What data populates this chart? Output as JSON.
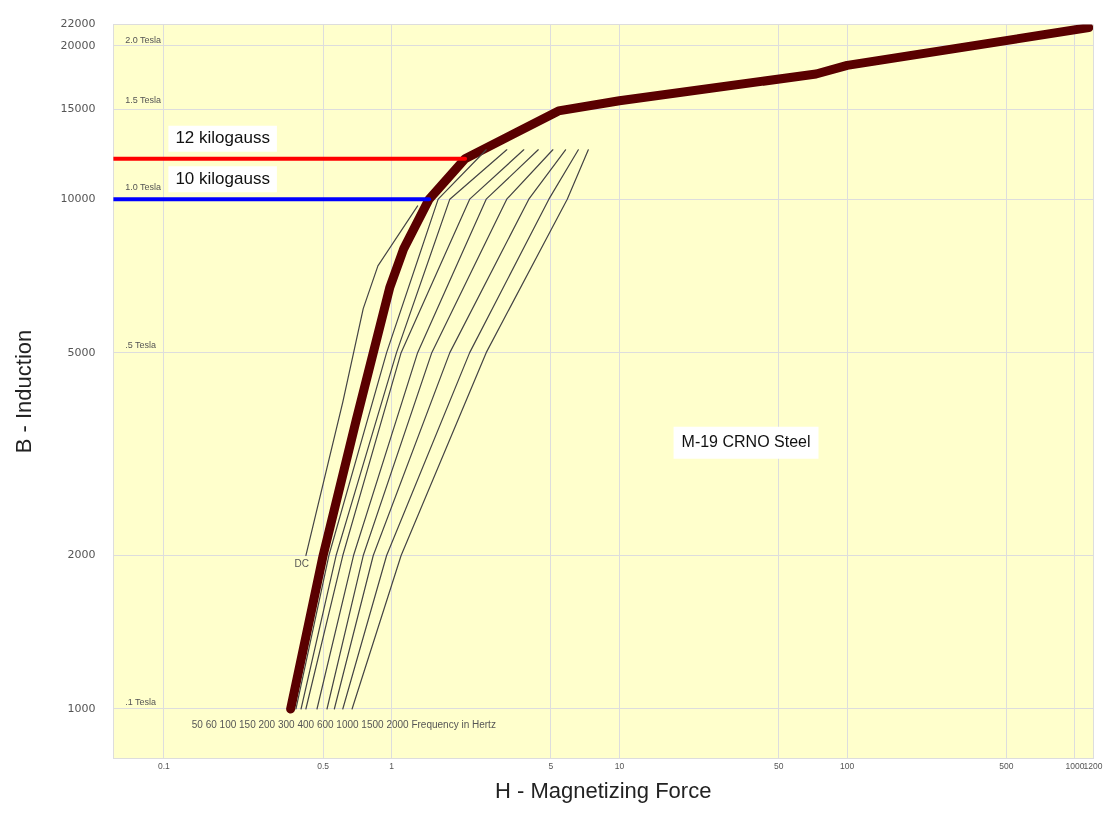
{
  "chart_data": {
    "type": "line",
    "xlabel": "H - Magnetizing Force",
    "ylabel": "B - Induction",
    "log": "xy",
    "grid": true,
    "legend": false,
    "marker": "none",
    "line_style": "solid",
    "xlim": [
      0.06,
      1200
    ],
    "xticks": [
      0.1,
      0.5,
      1,
      5,
      10,
      50,
      100,
      500,
      1000,
      1200
    ],
    "ylim": [
      800,
      22000
    ],
    "yticks": [
      1000,
      2000,
      5000,
      10000,
      15000,
      20000,
      22000
    ],
    "series": [
      {
        "color": "#5a0000",
        "x": [
          0.36,
          0.5,
          0.7,
          0.98,
          1.13,
          1.46,
          2.1,
          5.4,
          10,
          73,
          100,
          1150
        ],
        "values": [
          1000,
          2000,
          3700,
          6700,
          8000,
          10000,
          12000,
          14900,
          15600,
          17600,
          18300,
          21700
        ]
      },
      {
        "color": "#444444",
        "x": [
          0.42,
          0.61,
          0.75,
          0.87,
          1.3
        ],
        "values": [
          2000,
          4000,
          6100,
          7400,
          9700
        ]
      },
      {
        "color": "#444444",
        "x": [
          0.38,
          0.53,
          0.95,
          1.6,
          2.6
        ],
        "values": [
          1000,
          2000,
          5000,
          10000,
          12500
        ]
      },
      {
        "color": "#444444",
        "x": [
          0.4,
          0.57,
          1.05,
          1.8,
          3.2
        ],
        "values": [
          1000,
          2000,
          5000,
          10000,
          12500
        ]
      },
      {
        "color": "#444444",
        "x": [
          0.42,
          0.61,
          1.1,
          2.2,
          3.8
        ],
        "values": [
          1000,
          2000,
          5000,
          10000,
          12500
        ]
      },
      {
        "color": "#444444",
        "x": [
          0.47,
          0.68,
          1.3,
          2.6,
          4.4
        ],
        "values": [
          1000,
          2000,
          5000,
          10000,
          12500
        ]
      },
      {
        "color": "#444444",
        "x": [
          0.52,
          0.75,
          1.5,
          3.2,
          5.1
        ],
        "values": [
          1000,
          2000,
          5000,
          10000,
          12500
        ]
      },
      {
        "color": "#444444",
        "x": [
          0.56,
          0.83,
          1.8,
          4,
          5.8
        ],
        "values": [
          1000,
          2000,
          5000,
          10000,
          12500
        ]
      },
      {
        "color": "#444444",
        "x": [
          0.61,
          0.95,
          2.2,
          4.9,
          6.6
        ],
        "values": [
          1000,
          2000,
          5000,
          10000,
          12500
        ]
      },
      {
        "color": "#444444",
        "x": [
          0.67,
          1.1,
          2.6,
          5.9,
          7.3
        ],
        "values": [
          1000,
          2000,
          5000,
          10000,
          12500
        ]
      },
      {
        "name": "12 kilogauss",
        "color": "#ff0000",
        "x": [
          0.06,
          2.1
        ],
        "values": [
          12000,
          12000
        ]
      },
      {
        "name": "10 kilogauss",
        "color": "#0000ff",
        "x": [
          0.06,
          1.46
        ],
        "values": [
          10000,
          10000
        ]
      }
    ],
    "annotations": [
      "M-19 CRNO Steel",
      "50 60 100 150 200 300 400 600 1000 1500 2000 Frequency in Hertz",
      "DC",
      "2.0 Tesla",
      "1.5 Tesla",
      "1.0 Tesla",
      ".5 Tesla",
      ".1 Tesla"
    ]
  }
}
